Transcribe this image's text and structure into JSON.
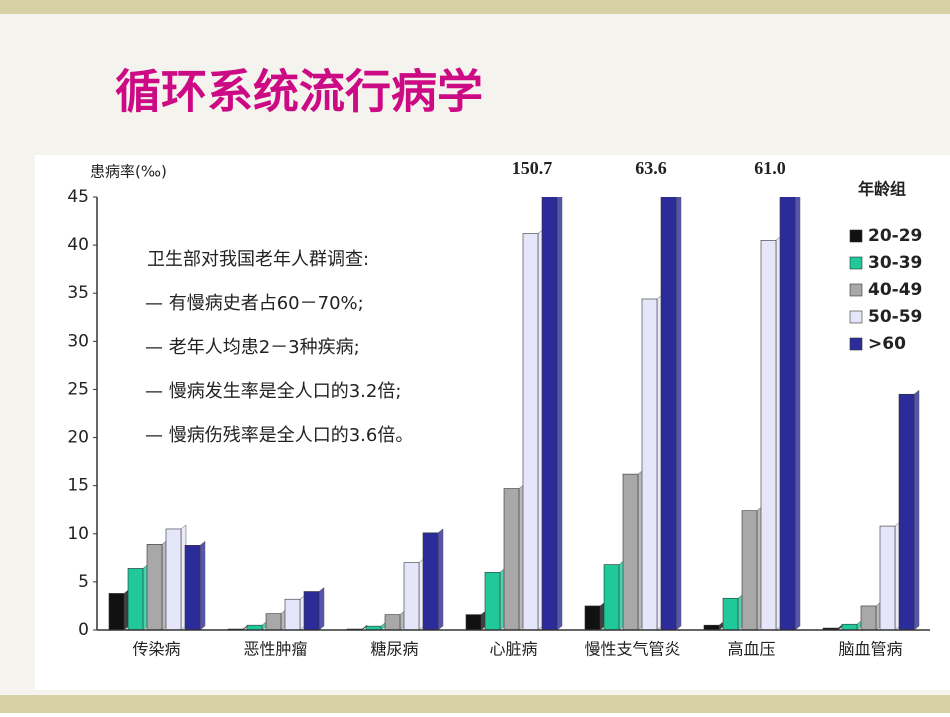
{
  "slide_title": "循环系统流行病学",
  "chart_data": {
    "type": "bar",
    "y_label": "患病率(‰)",
    "legend_title": "年龄组",
    "annotation": [
      "卫生部对我国老年人群调查:",
      "— 有慢病史者占60－70%;",
      "— 老年人均患2－3种疾病;",
      "— 慢病发生率是全人口的3.2倍;",
      "— 慢病伤残率是全人口的3.6倍。"
    ],
    "categories": [
      "传染病",
      "恶性肿瘤",
      "糖尿病",
      "心脏病",
      "慢性支气管炎",
      "高血压",
      "脑血管病"
    ],
    "series": [
      {
        "name": "20-29",
        "color": "#111111",
        "values": [
          3.8,
          0.1,
          0.1,
          1.6,
          2.5,
          0.5,
          0.2
        ]
      },
      {
        "name": "30-39",
        "color": "#1fc99a",
        "values": [
          6.4,
          0.5,
          0.4,
          6.0,
          6.8,
          3.3,
          0.6
        ]
      },
      {
        "name": "40-49",
        "color": "#a8a8a8",
        "values": [
          8.9,
          1.7,
          1.6,
          14.7,
          16.2,
          12.4,
          2.5
        ]
      },
      {
        "name": "50-59",
        "color": "#e6e6fa",
        "values": [
          10.5,
          3.2,
          7.0,
          41.2,
          34.4,
          40.5,
          10.8
        ]
      },
      {
        "name": ">60",
        "color": "#2b2b9a",
        "values": [
          8.8,
          4.0,
          10.1,
          150.7,
          63.6,
          61.0,
          24.5
        ],
        "value_labels": [
          null,
          null,
          null,
          "150.7",
          "63.6",
          "61.0",
          null
        ]
      }
    ],
    "ylim": [
      0,
      45
    ],
    "yticks": [
      0,
      5,
      10,
      15,
      20,
      25,
      30,
      35,
      40,
      45
    ],
    "legend": "right"
  }
}
